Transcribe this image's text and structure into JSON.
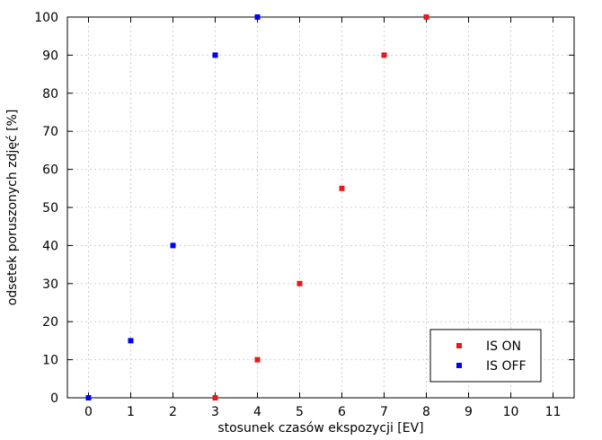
{
  "chart_data": {
    "type": "scatter",
    "xlabel": "stosunek czasów ekspozycji [EV]",
    "ylabel": "odsetek poruszonych zdjęć [%]",
    "xlim": [
      -0.5,
      11.5
    ],
    "ylim": [
      0,
      100
    ],
    "xticks": [
      0,
      1,
      2,
      3,
      4,
      5,
      6,
      7,
      8,
      9,
      10,
      11
    ],
    "yticks": [
      0,
      10,
      20,
      30,
      40,
      50,
      60,
      70,
      80,
      90,
      100
    ],
    "grid": true,
    "legend_position": "bottom-right",
    "series": [
      {
        "name": "IS ON",
        "color": "#e41a1c",
        "points": [
          [
            3,
            0
          ],
          [
            4,
            10
          ],
          [
            5,
            30
          ],
          [
            6,
            55
          ],
          [
            7,
            90
          ],
          [
            8,
            100
          ]
        ]
      },
      {
        "name": "IS OFF",
        "color": "#0000ff",
        "points": [
          [
            0,
            0
          ],
          [
            1,
            15
          ],
          [
            2,
            40
          ],
          [
            3,
            90
          ],
          [
            4,
            100
          ]
        ]
      }
    ]
  }
}
